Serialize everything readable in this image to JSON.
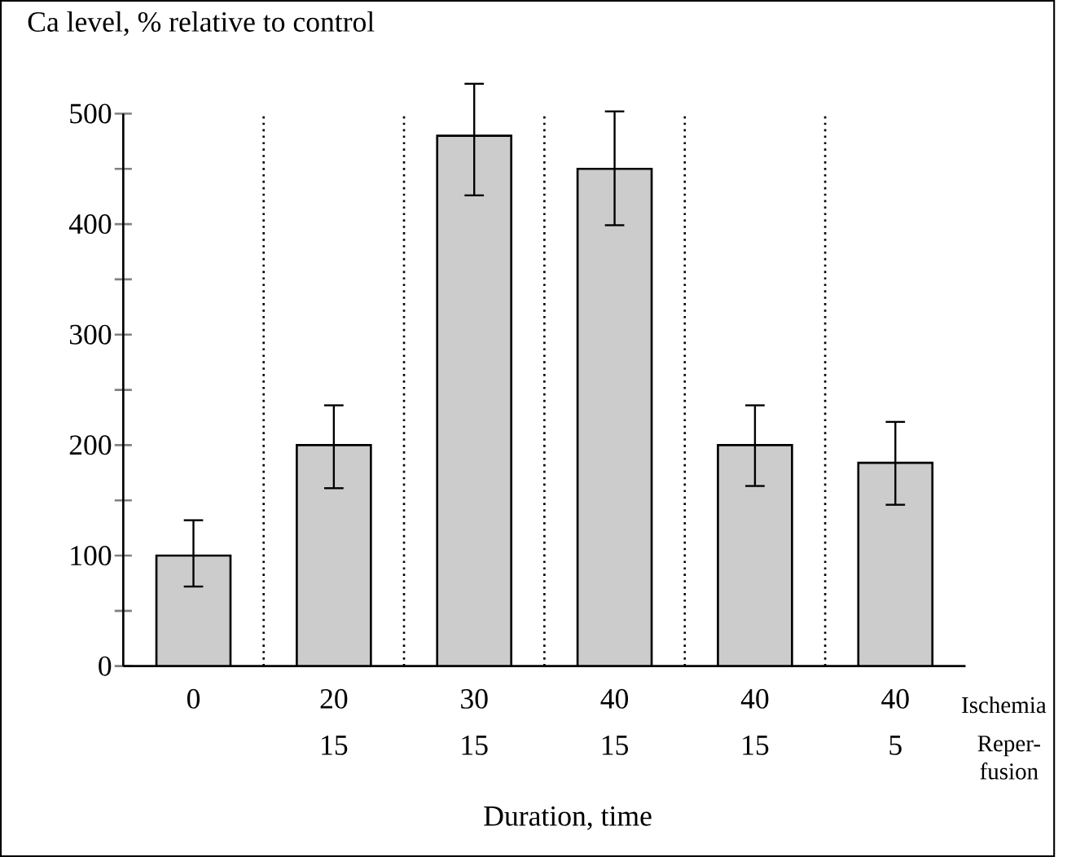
{
  "chart_data": {
    "type": "bar",
    "ylabel": "Ca level, % relative to control",
    "xlabel": "Duration, time",
    "categories": [
      "0",
      "20",
      "30",
      "40",
      "40",
      "40"
    ],
    "values": [
      100,
      200,
      480,
      450,
      200,
      184
    ],
    "errors": [
      [
        72,
        132
      ],
      [
        161,
        236
      ],
      [
        426,
        527
      ],
      [
        399,
        502
      ],
      [
        163,
        236
      ],
      [
        146,
        221
      ]
    ],
    "color": "#cccccc",
    "ylim": [
      0,
      500
    ],
    "yticks": [
      0,
      {
        "value": 50,
        "label": null
      },
      100,
      {
        "value": 150,
        "label": null
      },
      200,
      {
        "value": 250,
        "label": null
      },
      300,
      {
        "value": 350,
        "label": null
      },
      400,
      {
        "value": 450,
        "label": null
      },
      500
    ],
    "annotations": [
      "Ischemia",
      "Reper- fusion",
      "15",
      "15",
      "15",
      "15",
      "5"
    ]
  }
}
